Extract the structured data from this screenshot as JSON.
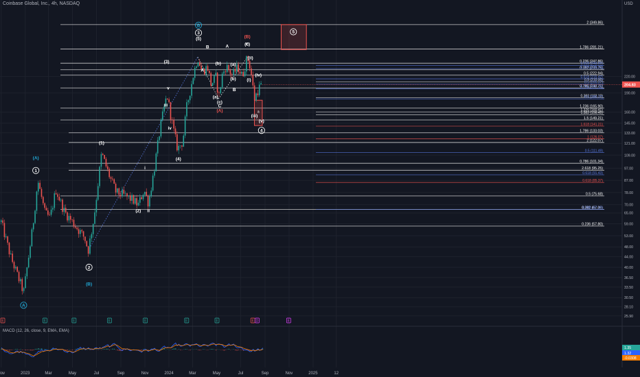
{
  "header": {
    "title": "Coinbase Global, Inc., 4h, NASDAQ",
    "currency": "USD"
  },
  "macd": {
    "title": "MACD (12, 26, close, 9, EMA, EMA)",
    "badges": [
      "1.35",
      "1.32",
      "-0.0308"
    ],
    "badge_colors": [
      "#26a69a",
      "#2962ff",
      "#f57c00"
    ]
  },
  "colors": {
    "background": "#131722",
    "up": "#26a69a",
    "down": "#ef5350",
    "teal": "#22a9d6",
    "white_fib": "#e8e8e8",
    "blue_fib": "#5b7ce6",
    "red_fib": "#ef5350"
  },
  "chart_data": {
    "type": "candlestick",
    "title": "Coinbase Global, Inc., 4h, NASDAQ",
    "y_scale": "log",
    "ylim": [
      24.5,
      410
    ],
    "price_ticks": [
      "220.00",
      "190.00",
      "160.00",
      "145.00",
      "133.00",
      "121.00",
      "109.00",
      "97.00",
      "87.00",
      "78.00",
      "70.00",
      "65.00",
      "59.00",
      "53.00",
      "48.00",
      "44.00",
      "40.00",
      "36.50",
      "33.50",
      "30.50",
      "28.10",
      "25.90"
    ],
    "x_ticks": [
      "Nov",
      "2023",
      "Mar",
      "May",
      "Jul",
      "Sep",
      "Nov",
      "2024",
      "Mar",
      "May",
      "Jul",
      "Sep",
      "Nov",
      "2025",
      "12"
    ],
    "price_path": [
      {
        "d": "2022-11-01",
        "p": 60
      },
      {
        "d": "2022-11-25",
        "p": 44
      },
      {
        "d": "2022-12-28",
        "p": 32
      },
      {
        "d": "2023-01-20",
        "p": 57
      },
      {
        "d": "2023-02-02",
        "p": 87
      },
      {
        "d": "2023-02-20",
        "p": 65
      },
      {
        "d": "2023-03-05",
        "p": 62
      },
      {
        "d": "2023-03-20",
        "p": 80
      },
      {
        "d": "2023-04-10",
        "p": 66
      },
      {
        "d": "2023-05-01",
        "p": 60
      },
      {
        "d": "2023-06-01",
        "p": 52
      },
      {
        "d": "2023-06-10",
        "p": 46.5
      },
      {
        "d": "2023-06-25",
        "p": 63
      },
      {
        "d": "2023-07-14",
        "p": 111
      },
      {
        "d": "2023-08-01",
        "p": 92
      },
      {
        "d": "2023-08-20",
        "p": 78
      },
      {
        "d": "2023-09-10",
        "p": 76
      },
      {
        "d": "2023-10-01",
        "p": 73
      },
      {
        "d": "2023-10-15",
        "p": 69.8
      },
      {
        "d": "2023-10-30",
        "p": 80
      },
      {
        "d": "2023-11-10",
        "p": 71
      },
      {
        "d": "2023-11-25",
        "p": 97
      },
      {
        "d": "2023-12-10",
        "p": 140
      },
      {
        "d": "2023-12-27",
        "p": 187
      },
      {
        "d": "2024-01-12",
        "p": 138
      },
      {
        "d": "2024-01-23",
        "p": 115
      },
      {
        "d": "2024-02-05",
        "p": 123
      },
      {
        "d": "2024-02-15",
        "p": 167
      },
      {
        "d": "2024-03-02",
        "p": 220
      },
      {
        "d": "2024-03-14",
        "p": 262
      },
      {
        "d": "2024-03-25",
        "p": 230
      },
      {
        "d": "2024-04-08",
        "p": 240
      },
      {
        "d": "2024-04-17",
        "p": 205
      },
      {
        "d": "2024-04-30",
        "p": 220
      },
      {
        "d": "2024-05-06",
        "p": 180
      },
      {
        "d": "2024-05-15",
        "p": 222
      },
      {
        "d": "2024-05-25",
        "p": 242
      },
      {
        "d": "2024-06-10",
        "p": 222
      },
      {
        "d": "2024-06-24",
        "p": 240
      },
      {
        "d": "2024-07-05",
        "p": 220
      },
      {
        "d": "2024-07-18",
        "p": 262
      },
      {
        "d": "2024-07-26",
        "p": 237
      },
      {
        "d": "2024-08-05",
        "p": 180
      },
      {
        "d": "2024-08-15",
        "p": 197
      },
      {
        "d": "2024-08-25",
        "p": 206
      }
    ],
    "white_fib_levels": [
      {
        "label": "2 (349.86)",
        "price": 349.86
      },
      {
        "label": "1.786 (281.21)",
        "price": 281.21
      },
      {
        "label": "0.236 (247.86)",
        "price": 247.86
      },
      {
        "label": "0.382 (233.75)",
        "price": 233.75
      },
      {
        "label": "0.5 (222.94)",
        "price": 222.94
      },
      {
        "label": "0.786 (198.75)",
        "price": 198.75
      },
      {
        "label": "1.236 (165.90)",
        "price": 165.9
      },
      {
        "label": "1.5 (149.21)",
        "price": 149.21
      },
      {
        "label": "1.786 (133.03)",
        "price": 133.03
      },
      {
        "label": "2 (122.07)",
        "price": 122.07
      },
      {
        "label": "0.786 (101.34)",
        "price": 101.34
      },
      {
        "label": "2.618 (95.25)",
        "price": 95.25
      },
      {
        "label": "0.5 (75.68)",
        "price": 75.68
      },
      {
        "label": "0.382 (67.09)",
        "price": 67.09
      },
      {
        "label": "0.236 (57.80)",
        "price": 57.8
      }
    ],
    "secondary_fib_levels": [
      {
        "label": "0.5 (210.00)",
        "price": 210.0,
        "color": "#e8e8e8"
      },
      {
        "label": "0.382 (182.10)",
        "price": 182.1,
        "color": "#e8e8e8"
      },
      {
        "label": "1.326 (160.41)",
        "price": 160.41,
        "color": "#e8e8e8"
      },
      {
        "label": "1.382 (156.45)",
        "price": 156.45,
        "color": "#e8e8e8"
      },
      {
        "label": "0.618 (243.00)",
        "price": 243.0,
        "color": "#5b7ce6"
      },
      {
        "label": "0.764 (236.10)",
        "price": 236.1,
        "color": "#5b7ce6"
      },
      {
        "label": "0.618 (215.42)",
        "price": 215.42,
        "color": "#5b7ce6"
      },
      {
        "label": "0.5 (205.37)",
        "price": 205.37,
        "color": "#5b7ce6"
      },
      {
        "label": "0.764 (197.10)",
        "price": 197.1,
        "color": "#5b7ce6"
      },
      {
        "label": "0.5 (111.49)",
        "price": 111.49,
        "color": "#5b7ce6"
      },
      {
        "label": "0.618 (91.43)",
        "price": 91.43,
        "color": "#5b7ce6"
      },
      {
        "label": "0.386 (67.10)",
        "price": 67.1,
        "color": "#5b7ce6"
      },
      {
        "label": "0.5 (180.17)",
        "price": 180.17,
        "color": "#5b7ce6"
      },
      {
        "label": "1.618 (141.21)",
        "price": 141.21,
        "color": "#ef5350"
      },
      {
        "label": "1 (126.07)",
        "price": 126.07,
        "color": "#ef5350"
      },
      {
        "label": "0.618 (85.37)",
        "price": 85.37,
        "color": "#ef5350"
      }
    ],
    "current_price": {
      "label": "204.83",
      "price": 204.83
    },
    "target_zones": [
      {
        "label": "5",
        "from": "2024-10-12",
        "to": "2024-12-15",
        "low": 280,
        "high": 350,
        "color": "#ef5350"
      },
      {
        "label": "4",
        "from": "2024-08-05",
        "to": "2024-08-25",
        "low": 142,
        "high": 178,
        "color": "#ef5350"
      }
    ],
    "wave_labels": [
      {
        "text": "(A)",
        "d": "2023-01-28",
        "p": 105,
        "color": "#22a9d6"
      },
      {
        "text": "1",
        "d": "2023-01-28",
        "p": 95,
        "color": "#ffffff",
        "circle": true
      },
      {
        "text": "(B)",
        "d": "2023-06-12",
        "p": 34,
        "color": "#22a9d6"
      },
      {
        "text": "2",
        "d": "2023-06-12",
        "p": 40,
        "color": "#ffffff",
        "circle": true
      },
      {
        "text": "A",
        "d": "2022-12-28",
        "p": 28.5,
        "color": "#22a9d6",
        "circle": true
      },
      {
        "text": "(1)",
        "d": "2023-07-14",
        "p": 120,
        "color": "#ffffff"
      },
      {
        "text": "(2)",
        "d": "2023-10-15",
        "p": 65.5,
        "color": "#ffffff"
      },
      {
        "text": "i",
        "d": "2023-11-01",
        "p": 96,
        "color": "#ffffff"
      },
      {
        "text": "ii",
        "d": "2023-11-10",
        "p": 65.5,
        "color": "#ffffff"
      },
      {
        "text": "iii",
        "d": "2023-12-24",
        "p": 168,
        "color": "#ffffff"
      },
      {
        "text": "iv",
        "d": "2024-01-03",
        "p": 137,
        "color": "#ffffff"
      },
      {
        "text": "v",
        "d": "2023-12-30",
        "p": 196,
        "color": "#ffffff"
      },
      {
        "text": "(3)",
        "d": "2023-12-26",
        "p": 248,
        "color": "#ffffff"
      },
      {
        "text": "(4)",
        "d": "2024-01-25",
        "p": 104,
        "color": "#ffffff"
      },
      {
        "text": "(5)",
        "d": "2024-03-16",
        "p": 305,
        "color": "#ffffff"
      },
      {
        "text": "3",
        "d": "2024-03-16",
        "p": 325,
        "color": "#ffffff",
        "circle": true
      },
      {
        "text": "B",
        "d": "2024-03-16",
        "p": 348,
        "color": "#22a9d6",
        "circle": true
      },
      {
        "text": "A",
        "d": "2024-03-26",
        "p": 230,
        "color": "#ffffff"
      },
      {
        "text": "B",
        "d": "2024-04-08",
        "p": 283,
        "color": "#ffffff"
      },
      {
        "text": "(b)",
        "d": "2024-05-05",
        "p": 244,
        "color": "#ffffff"
      },
      {
        "text": "(a)",
        "d": "2024-04-28",
        "p": 181,
        "color": "#ffffff"
      },
      {
        "text": "(c)",
        "d": "2024-05-09",
        "p": 173,
        "color": "#ffffff"
      },
      {
        "text": "C",
        "d": "2024-05-09",
        "p": 167,
        "color": "#ffffff"
      },
      {
        "text": "(a)",
        "d": "2024-06-12",
        "p": 242,
        "color": "#ffffff"
      },
      {
        "text": "(b)",
        "d": "2024-06-12",
        "p": 213,
        "color": "#ffffff"
      },
      {
        "text": "A",
        "d": "2024-05-28",
        "p": 285,
        "color": "#ffffff"
      },
      {
        "text": "B",
        "d": "2024-06-15",
        "p": 193,
        "color": "#ffffff"
      },
      {
        "text": "C",
        "d": "2024-07-18",
        "p": 290,
        "color": "#ffffff"
      },
      {
        "text": "(B)",
        "d": "2024-07-18",
        "p": 310,
        "color": "#ef5350"
      },
      {
        "text": "(c)",
        "d": "2024-07-18",
        "p": 290,
        "color": "#ffffff"
      },
      {
        "text": "(ii)",
        "d": "2024-07-26",
        "p": 257,
        "color": "#ffffff"
      },
      {
        "text": "(i)",
        "d": "2024-07-22",
        "p": 211,
        "color": "#ffffff"
      },
      {
        "text": "(iii)",
        "d": "2024-08-05",
        "p": 153,
        "color": "#ffffff"
      },
      {
        "text": "(iv)",
        "d": "2024-08-15",
        "p": 220,
        "color": "#ffffff"
      },
      {
        "text": "(v)",
        "d": "2024-08-23",
        "p": 146,
        "color": "#ffffff"
      },
      {
        "text": "4",
        "d": "2024-08-23",
        "p": 136,
        "color": "#ffffff",
        "circle": true
      },
      {
        "text": "5",
        "d": "2024-11-12",
        "p": 328,
        "color": "#ffffff",
        "circle": true
      },
      {
        "text": "(A)",
        "d": "2024-05-09",
        "p": 160,
        "color": "#ef5350"
      }
    ],
    "event_markers": [
      {
        "d": "2022-11-05",
        "kind": "E",
        "color": "#ef5350"
      },
      {
        "d": "2023-02-20",
        "kind": "E",
        "color": "#26a69a"
      },
      {
        "d": "2023-05-05",
        "kind": "E",
        "color": "#26a69a"
      },
      {
        "d": "2023-08-03",
        "kind": "E",
        "color": "#26a69a"
      },
      {
        "d": "2023-11-02",
        "kind": "E",
        "color": "#26a69a"
      },
      {
        "d": "2024-02-15",
        "kind": "E",
        "color": "#26a69a"
      },
      {
        "d": "2024-05-02",
        "kind": "E",
        "color": "#26a69a"
      },
      {
        "d": "2024-08-01",
        "kind": "E",
        "color": "#ef5350"
      },
      {
        "d": "2024-08-12",
        "kind": "D",
        "color": "#e040fb"
      },
      {
        "d": "2024-10-31",
        "kind": "E",
        "color": "#e040fb"
      }
    ]
  }
}
